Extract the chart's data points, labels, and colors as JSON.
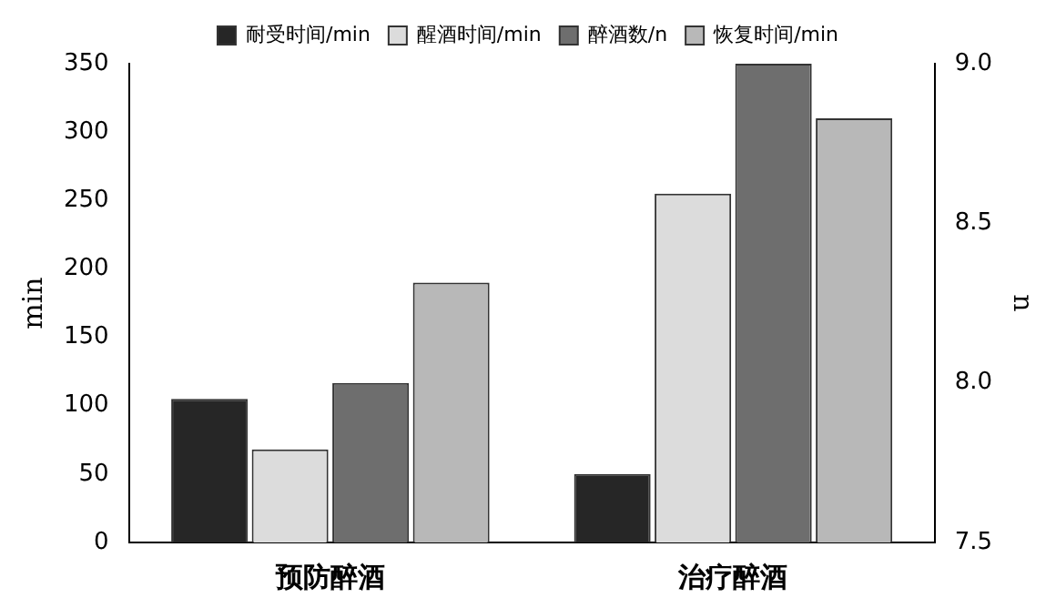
{
  "chart_data": {
    "type": "bar",
    "categories": [
      "预防醉酒",
      "治疗醉酒"
    ],
    "ylabel": "min",
    "y2label": "n",
    "series": [
      {
        "name": "耐受时间/min",
        "color": "#262626",
        "values": [
          105,
          50
        ]
      },
      {
        "name": "醒酒时间/min",
        "color": "#dcdcdc",
        "values": [
          68,
          255
        ]
      },
      {
        "name": "醉酒数/n",
        "color": "#6e6e6e",
        "values": [
          8.0,
          9.0
        ],
        "axis": "y2"
      },
      {
        "name": "恢复时间/min",
        "color": "#b8b8b8",
        "values": [
          190,
          310
        ]
      }
    ],
    "ylim": [
      0,
      350
    ],
    "yticks": [
      0,
      50,
      100,
      150,
      200,
      250,
      300,
      350
    ],
    "y2lim": [
      7.5,
      9.0
    ],
    "y2ticks": [
      7.5,
      {
        "value": 8,
        "label": "8.0"
      },
      8.5,
      {
        "value": 9,
        "label": "9.0"
      }
    ],
    "legend": "top",
    "grid": false
  }
}
